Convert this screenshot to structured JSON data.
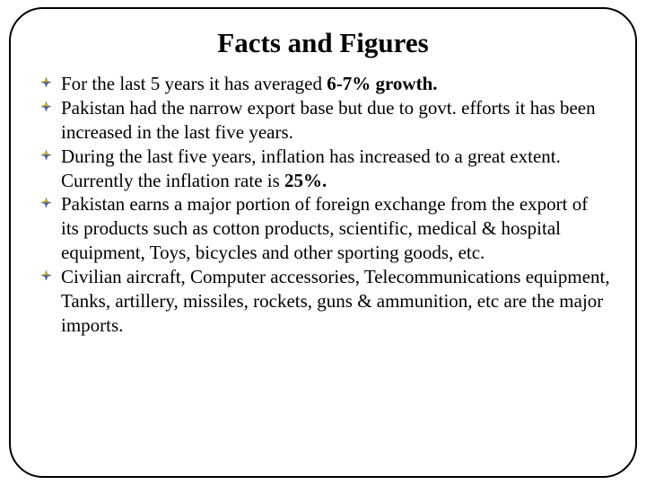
{
  "slide": {
    "title": "Facts and Figures",
    "title_fontsize": 31,
    "title_color": "#000000",
    "body_fontsize": 21,
    "body_color": "#000000",
    "background_color": "#ffffff",
    "frame_border_color": "#000000",
    "frame_border_radius": 38,
    "bullet_icon": {
      "type": "4-point-star",
      "fill_top": "#d9a300",
      "fill_bottom": "#2f5aa8",
      "stroke": "#1f3d73"
    },
    "bullets": [
      "For the last 5 years it has averaged 6-7% growth.",
      "Pakistan had the narrow export base but due to govt. efforts it has been increased in the last five years.",
      "During the last five years, inflation has increased to a great extent. Currently the inflation rate is 25%.",
      "Pakistan earns a major portion of foreign exchange from the export of its products such as cotton products, scientific, medical & hospital equipment, Toys, bicycles and other sporting goods, etc.",
      "Civilian aircraft, Computer accessories, Telecommunications equipment, Tanks, artillery, missiles, rockets, guns & ammunition, etc are the major imports."
    ],
    "bold_spans": [
      {
        "bullet_index": 0,
        "text": "6-7% growth."
      },
      {
        "bullet_index": 2,
        "text": "25%."
      }
    ]
  }
}
